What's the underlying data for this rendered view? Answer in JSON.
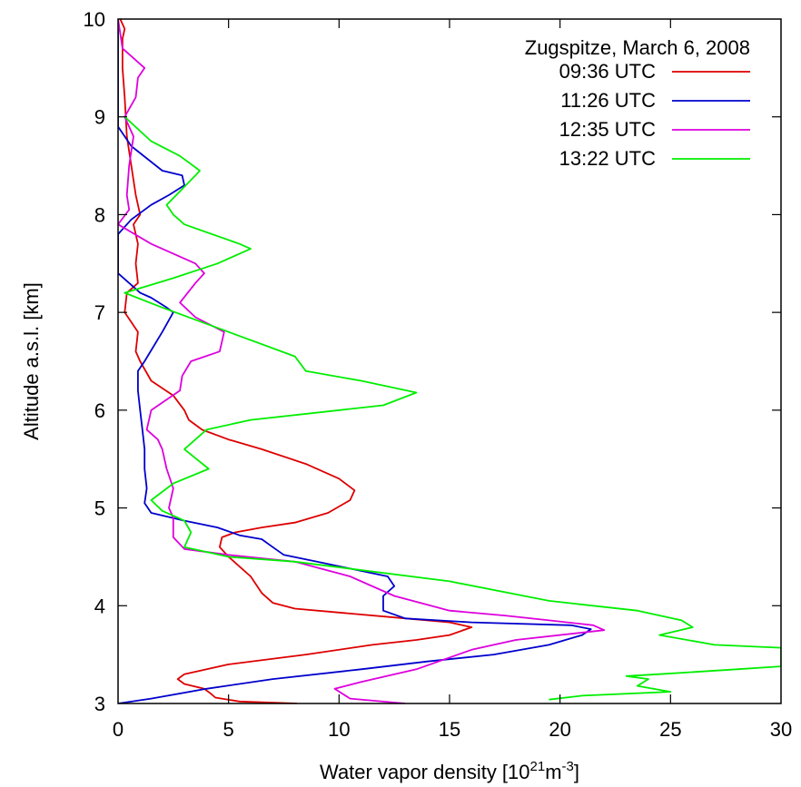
{
  "chart_data": {
    "type": "line",
    "title": "",
    "xlabel": "Water vapor density [10",
    "xlabel_sup1": "21",
    "xlabel_mid": "m",
    "xlabel_sup2": "-3",
    "xlabel_end": "]",
    "ylabel": "Altitude a.s.l. [km]",
    "xlim": [
      0,
      30
    ],
    "ylim": [
      3,
      10
    ],
    "xticks": [
      "0",
      "5",
      "10",
      "15",
      "20",
      "25",
      "30"
    ],
    "yticks": [
      "3",
      "4",
      "5",
      "6",
      "7",
      "8",
      "9",
      "10"
    ],
    "grid": false,
    "legend_title": "Zugspitze, March 6, 2008",
    "legend_position": "top-right",
    "series": [
      {
        "name": "09:36 UTC",
        "color": "#dd0000",
        "points": [
          [
            8.1,
            3.0
          ],
          [
            5.5,
            3.02
          ],
          [
            4.4,
            3.06
          ],
          [
            4.2,
            3.1
          ],
          [
            3.9,
            3.15
          ],
          [
            3.0,
            3.2
          ],
          [
            2.7,
            3.25
          ],
          [
            3.0,
            3.3
          ],
          [
            5.0,
            3.4
          ],
          [
            8.5,
            3.5
          ],
          [
            11.5,
            3.6
          ],
          [
            13.5,
            3.65
          ],
          [
            15.0,
            3.7
          ],
          [
            16.0,
            3.78
          ],
          [
            15.0,
            3.83
          ],
          [
            12.5,
            3.88
          ],
          [
            10.0,
            3.93
          ],
          [
            8.0,
            3.97
          ],
          [
            7.0,
            4.03
          ],
          [
            6.5,
            4.13
          ],
          [
            6.0,
            4.3
          ],
          [
            5.5,
            4.4
          ],
          [
            5.0,
            4.5
          ],
          [
            4.6,
            4.6
          ],
          [
            4.7,
            4.7
          ],
          [
            5.3,
            4.75
          ],
          [
            6.5,
            4.8
          ],
          [
            8.0,
            4.85
          ],
          [
            9.5,
            4.95
          ],
          [
            10.5,
            5.08
          ],
          [
            10.7,
            5.18
          ],
          [
            10.0,
            5.3
          ],
          [
            8.5,
            5.45
          ],
          [
            6.5,
            5.6
          ],
          [
            5.0,
            5.7
          ],
          [
            3.8,
            5.8
          ],
          [
            3.2,
            5.9
          ],
          [
            3.0,
            6.0
          ],
          [
            2.5,
            6.15
          ],
          [
            1.5,
            6.3
          ],
          [
            1.0,
            6.5
          ],
          [
            0.8,
            6.6
          ],
          [
            0.9,
            6.8
          ],
          [
            0.6,
            6.9
          ],
          [
            0.3,
            7.0
          ],
          [
            0.4,
            7.2
          ],
          [
            0.9,
            7.3
          ],
          [
            0.8,
            7.5
          ],
          [
            0.9,
            7.7
          ],
          [
            0.7,
            7.9
          ],
          [
            1.0,
            8.0
          ],
          [
            0.8,
            8.2
          ],
          [
            0.6,
            8.5
          ],
          [
            0.4,
            8.8
          ],
          [
            0.3,
            9.2
          ],
          [
            0.2,
            9.5
          ],
          [
            0.2,
            9.8
          ],
          [
            0.3,
            9.9
          ],
          [
            0.1,
            10.0
          ]
        ]
      },
      {
        "name": "11:26 UTC",
        "color": "#0000cc",
        "points": [
          [
            0.0,
            3.0
          ],
          [
            1.5,
            3.05
          ],
          [
            4.0,
            3.15
          ],
          [
            7.0,
            3.25
          ],
          [
            11.0,
            3.35
          ],
          [
            14.0,
            3.43
          ],
          [
            17.0,
            3.5
          ],
          [
            19.5,
            3.6
          ],
          [
            21.0,
            3.7
          ],
          [
            21.4,
            3.76
          ],
          [
            20.5,
            3.8
          ],
          [
            16.0,
            3.83
          ],
          [
            13.0,
            3.87
          ],
          [
            12.0,
            3.95
          ],
          [
            12.0,
            4.1
          ],
          [
            12.5,
            4.2
          ],
          [
            12.2,
            4.3
          ],
          [
            10.5,
            4.38
          ],
          [
            9.0,
            4.45
          ],
          [
            7.5,
            4.52
          ],
          [
            7.0,
            4.6
          ],
          [
            6.5,
            4.68
          ],
          [
            5.5,
            4.72
          ],
          [
            4.5,
            4.8
          ],
          [
            3.0,
            4.87
          ],
          [
            1.5,
            4.95
          ],
          [
            1.2,
            5.05
          ],
          [
            1.3,
            5.2
          ],
          [
            1.2,
            5.4
          ],
          [
            1.2,
            5.6
          ],
          [
            1.1,
            5.8
          ],
          [
            1.0,
            6.0
          ],
          [
            0.9,
            6.2
          ],
          [
            0.9,
            6.4
          ],
          [
            1.2,
            6.5
          ],
          [
            2.0,
            6.8
          ],
          [
            2.5,
            7.0
          ],
          [
            2.2,
            7.05
          ],
          [
            1.5,
            7.15
          ],
          [
            1.0,
            7.2
          ],
          [
            0.5,
            7.3
          ],
          [
            0.0,
            7.4
          ],
          [
            0.0,
            7.8
          ],
          [
            0.6,
            7.95
          ],
          [
            1.5,
            8.1
          ],
          [
            2.3,
            8.2
          ],
          [
            3.0,
            8.3
          ],
          [
            2.9,
            8.4
          ],
          [
            2.0,
            8.45
          ],
          [
            0.6,
            8.7
          ],
          [
            0.0,
            8.9
          ],
          [
            0.0,
            9.4
          ],
          [
            0.0,
            10.0
          ]
        ]
      },
      {
        "name": "12:35 UTC",
        "color": "#dd00dd",
        "points": [
          [
            13.0,
            3.0
          ],
          [
            10.5,
            3.05
          ],
          [
            9.8,
            3.15
          ],
          [
            11.0,
            3.22
          ],
          [
            13.5,
            3.35
          ],
          [
            16.0,
            3.55
          ],
          [
            18.0,
            3.65
          ],
          [
            22.0,
            3.75
          ],
          [
            21.5,
            3.8
          ],
          [
            19.5,
            3.85
          ],
          [
            17.5,
            3.9
          ],
          [
            15.0,
            3.95
          ],
          [
            12.5,
            4.1
          ],
          [
            10.5,
            4.3
          ],
          [
            8.0,
            4.45
          ],
          [
            5.0,
            4.52
          ],
          [
            3.0,
            4.58
          ],
          [
            2.5,
            4.7
          ],
          [
            2.5,
            4.8
          ],
          [
            2.5,
            4.9
          ],
          [
            2.3,
            5.0
          ],
          [
            2.5,
            5.2
          ],
          [
            2.2,
            5.4
          ],
          [
            2.0,
            5.6
          ],
          [
            1.8,
            5.7
          ],
          [
            1.3,
            5.8
          ],
          [
            1.5,
            6.0
          ],
          [
            2.8,
            6.2
          ],
          [
            2.9,
            6.35
          ],
          [
            3.3,
            6.5
          ],
          [
            4.6,
            6.6
          ],
          [
            4.8,
            6.8
          ],
          [
            3.5,
            6.95
          ],
          [
            2.8,
            7.1
          ],
          [
            3.5,
            7.3
          ],
          [
            3.9,
            7.4
          ],
          [
            3.5,
            7.5
          ],
          [
            1.5,
            7.7
          ],
          [
            0.0,
            7.9
          ],
          [
            0.5,
            8.05
          ],
          [
            0.4,
            8.2
          ],
          [
            0.5,
            8.5
          ],
          [
            0.7,
            8.8
          ],
          [
            0.3,
            9.0
          ],
          [
            0.8,
            9.2
          ],
          [
            0.9,
            9.4
          ],
          [
            1.2,
            9.5
          ],
          [
            0.7,
            9.6
          ],
          [
            0.2,
            9.7
          ],
          [
            0.0,
            10.0
          ]
        ]
      },
      {
        "name": "13:22 UTC",
        "color": "#00ee00",
        "points": [
          [
            19.5,
            3.04
          ],
          [
            21.0,
            3.08
          ],
          [
            25.0,
            3.12
          ],
          [
            23.5,
            3.18
          ],
          [
            24.0,
            3.25
          ],
          [
            23.0,
            3.28
          ],
          [
            24.5,
            3.3
          ],
          [
            28.0,
            3.35
          ],
          [
            30.0,
            3.38
          ],
          [
            30.0,
            3.57
          ],
          [
            27.0,
            3.6
          ],
          [
            24.5,
            3.7
          ],
          [
            26.0,
            3.78
          ],
          [
            25.5,
            3.85
          ],
          [
            23.5,
            3.95
          ],
          [
            19.5,
            4.05
          ],
          [
            15.0,
            4.25
          ],
          [
            8.0,
            4.45
          ],
          [
            5.0,
            4.5
          ],
          [
            3.0,
            4.6
          ],
          [
            3.3,
            4.75
          ],
          [
            3.0,
            4.87
          ],
          [
            2.0,
            4.97
          ],
          [
            1.5,
            5.08
          ],
          [
            2.5,
            5.25
          ],
          [
            4.1,
            5.4
          ],
          [
            3.0,
            5.6
          ],
          [
            4.0,
            5.8
          ],
          [
            6.0,
            5.9
          ],
          [
            12.0,
            6.05
          ],
          [
            13.5,
            6.18
          ],
          [
            11.0,
            6.3
          ],
          [
            8.5,
            6.4
          ],
          [
            8.0,
            6.55
          ],
          [
            5.0,
            6.8
          ],
          [
            2.0,
            7.05
          ],
          [
            0.3,
            7.2
          ],
          [
            2.5,
            7.35
          ],
          [
            4.5,
            7.5
          ],
          [
            6.0,
            7.65
          ],
          [
            5.5,
            7.7
          ],
          [
            3.0,
            7.9
          ],
          [
            2.5,
            8.0
          ],
          [
            2.2,
            8.1
          ],
          [
            3.5,
            8.4
          ],
          [
            3.7,
            8.45
          ],
          [
            2.8,
            8.6
          ],
          [
            1.5,
            8.75
          ],
          [
            0.3,
            9.0
          ]
        ]
      }
    ]
  }
}
